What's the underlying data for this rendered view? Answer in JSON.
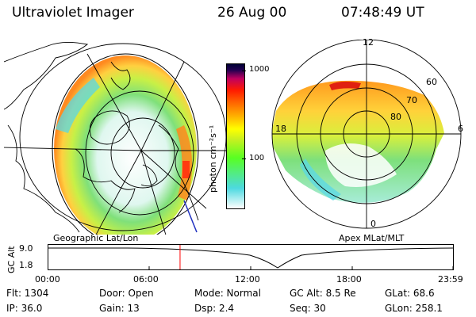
{
  "header": {
    "title": "Ultraviolet Imager",
    "date": "26 Aug 00",
    "time": "07:48:49 UT"
  },
  "left_panel": {
    "caption": "Geographic Lat/Lon"
  },
  "right_panel": {
    "caption": "Apex MLat/MLT",
    "mlt_labels": [
      "12",
      "18",
      "6",
      "0"
    ],
    "mlat_labels": [
      "60",
      "70",
      "80"
    ]
  },
  "colorbar": {
    "unit_label": "photon cm⁻²s⁻¹",
    "ticks": [
      "1000",
      "100"
    ],
    "scale": "log",
    "colors": [
      "#ffffff",
      "#4dd9e0",
      "#58ff22",
      "#ffff00",
      "#ff9900",
      "#ff2000",
      "#c00060",
      "#000033"
    ]
  },
  "altitude_plot": {
    "ylabel": "GC Alt",
    "yticks": [
      "9.0",
      "1.8"
    ],
    "xticks": [
      "00:00",
      "06:00",
      "12:00",
      "18:00",
      "23:59"
    ],
    "marker_time_hours": 7.81,
    "marker_color": "#ff0000"
  },
  "info": {
    "flt": "Flt: 1304",
    "door": "Door: Open",
    "mode": "Mode: Normal",
    "gc_alt": "GC Alt: 8.5 Re",
    "glat": "GLat:  68.6",
    "ip": "IP: 36.0",
    "gain": "Gain: 13",
    "dsp": "Dsp:    2.4",
    "seq": "Seq: 30",
    "glon": "GLon: 258.1"
  }
}
